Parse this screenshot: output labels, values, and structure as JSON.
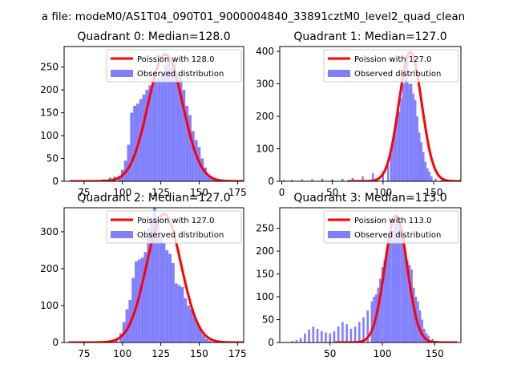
{
  "figure": {
    "suptitle": "a file: modeM0/AS1T04_090T01_9000004840_33891cztM0_level2_quad_clean"
  },
  "colors": {
    "poisson": "#ff0000",
    "observed": "#8080ff",
    "axis": "#000000"
  },
  "legend": {
    "observed_label": "Observed distribution"
  },
  "chart_data": [
    {
      "type": "histogram",
      "title": "Quadrant 0: Median=128.0",
      "xlim": [
        62,
        179
      ],
      "ylim": [
        0,
        295
      ],
      "xticks": [
        75,
        100,
        125,
        150,
        175
      ],
      "yticks": [
        0,
        50,
        100,
        150,
        200,
        250
      ],
      "poisson_mean": 128.0,
      "poisson_peak": 278,
      "poisson_label": "Poission with 128.0",
      "bins": [
        [
          88,
          4
        ],
        [
          92,
          8
        ],
        [
          95,
          10
        ],
        [
          98,
          12
        ],
        [
          100,
          25
        ],
        [
          102,
          45
        ],
        [
          104,
          80
        ],
        [
          106,
          150
        ],
        [
          108,
          165
        ],
        [
          110,
          170
        ],
        [
          112,
          180
        ],
        [
          114,
          190
        ],
        [
          116,
          200
        ],
        [
          118,
          210
        ],
        [
          120,
          215
        ],
        [
          122,
          225
        ],
        [
          124,
          228
        ],
        [
          126,
          238
        ],
        [
          128,
          255
        ],
        [
          130,
          262
        ],
        [
          132,
          248
        ],
        [
          134,
          265
        ],
        [
          136,
          240
        ],
        [
          138,
          230
        ],
        [
          140,
          200
        ],
        [
          142,
          165
        ],
        [
          144,
          145
        ],
        [
          146,
          110
        ],
        [
          148,
          90
        ],
        [
          150,
          75
        ],
        [
          152,
          50
        ],
        [
          154,
          30
        ],
        [
          156,
          12
        ],
        [
          158,
          8
        ],
        [
          160,
          4
        ]
      ]
    },
    {
      "type": "histogram",
      "title": "Quadrant 1: Median=127.0",
      "xlim": [
        -2,
        177
      ],
      "ylim": [
        0,
        415
      ],
      "xticks": [
        0,
        50,
        100,
        150
      ],
      "yticks": [
        0,
        100,
        200,
        300,
        400
      ],
      "poisson_mean": 127.0,
      "poisson_peak": 398,
      "poisson_label": "Poission with 127.0",
      "bins": [
        [
          2,
          4
        ],
        [
          10,
          5
        ],
        [
          20,
          6
        ],
        [
          30,
          6
        ],
        [
          40,
          8
        ],
        [
          50,
          6
        ],
        [
          60,
          8
        ],
        [
          70,
          10
        ],
        [
          80,
          15
        ],
        [
          90,
          25
        ],
        [
          100,
          30
        ],
        [
          105,
          50
        ],
        [
          108,
          85
        ],
        [
          110,
          115
        ],
        [
          112,
          160
        ],
        [
          114,
          205
        ],
        [
          116,
          215
        ],
        [
          118,
          255
        ],
        [
          120,
          300
        ],
        [
          122,
          350
        ],
        [
          124,
          370
        ],
        [
          126,
          300
        ],
        [
          128,
          300
        ],
        [
          130,
          270
        ],
        [
          132,
          250
        ],
        [
          134,
          200
        ],
        [
          136,
          150
        ],
        [
          138,
          120
        ],
        [
          140,
          90
        ],
        [
          142,
          60
        ],
        [
          144,
          40
        ],
        [
          146,
          30
        ],
        [
          148,
          15
        ],
        [
          152,
          8
        ],
        [
          158,
          5
        ],
        [
          162,
          5
        ]
      ]
    },
    {
      "type": "histogram",
      "title": "Quadrant 2: Median=127.0",
      "xlim": [
        62,
        179
      ],
      "ylim": [
        0,
        365
      ],
      "xticks": [
        75,
        100,
        125,
        150,
        175
      ],
      "yticks": [
        0,
        100,
        200,
        300
      ],
      "poisson_mean": 127.0,
      "poisson_peak": 348,
      "poisson_label": "Poission with 127.0",
      "bins": [
        [
          96,
          10
        ],
        [
          99,
          25
        ],
        [
          101,
          55
        ],
        [
          103,
          90
        ],
        [
          105,
          115
        ],
        [
          107,
          175
        ],
        [
          109,
          220
        ],
        [
          111,
          225
        ],
        [
          113,
          230
        ],
        [
          115,
          245
        ],
        [
          117,
          310
        ],
        [
          119,
          330
        ],
        [
          121,
          365
        ],
        [
          123,
          340
        ],
        [
          125,
          290
        ],
        [
          127,
          270
        ],
        [
          129,
          250
        ],
        [
          131,
          240
        ],
        [
          133,
          215
        ],
        [
          135,
          160
        ],
        [
          137,
          155
        ],
        [
          139,
          150
        ],
        [
          141,
          120
        ],
        [
          143,
          100
        ],
        [
          145,
          90
        ],
        [
          147,
          70
        ],
        [
          149,
          50
        ],
        [
          151,
          35
        ],
        [
          153,
          20
        ],
        [
          155,
          10
        ],
        [
          157,
          5
        ]
      ]
    },
    {
      "type": "histogram",
      "title": "Quadrant 3: Median=113.0",
      "xlim": [
        2,
        175
      ],
      "ylim": [
        0,
        295
      ],
      "xticks": [
        50,
        100,
        150
      ],
      "yticks": [
        0,
        50,
        100,
        150,
        200,
        250
      ],
      "poisson_mean": 113.0,
      "poisson_peak": 278,
      "poisson_label": "Poission with 113.0",
      "bins": [
        [
          14,
          3
        ],
        [
          18,
          5
        ],
        [
          22,
          10
        ],
        [
          26,
          20
        ],
        [
          30,
          28
        ],
        [
          34,
          35
        ],
        [
          38,
          30
        ],
        [
          42,
          25
        ],
        [
          46,
          22
        ],
        [
          50,
          20
        ],
        [
          54,
          25
        ],
        [
          58,
          35
        ],
        [
          62,
          45
        ],
        [
          66,
          40
        ],
        [
          70,
          30
        ],
        [
          74,
          35
        ],
        [
          78,
          45
        ],
        [
          82,
          55
        ],
        [
          86,
          70
        ],
        [
          90,
          90
        ],
        [
          92,
          100
        ],
        [
          94,
          105
        ],
        [
          96,
          120
        ],
        [
          98,
          140
        ],
        [
          100,
          165
        ],
        [
          102,
          180
        ],
        [
          104,
          200
        ],
        [
          106,
          220
        ],
        [
          108,
          235
        ],
        [
          110,
          245
        ],
        [
          112,
          260
        ],
        [
          114,
          270
        ],
        [
          116,
          265
        ],
        [
          118,
          250
        ],
        [
          120,
          220
        ],
        [
          122,
          200
        ],
        [
          124,
          180
        ],
        [
          126,
          170
        ],
        [
          128,
          160
        ],
        [
          130,
          120
        ],
        [
          132,
          100
        ],
        [
          134,
          90
        ],
        [
          136,
          70
        ],
        [
          138,
          50
        ],
        [
          140,
          30
        ],
        [
          142,
          20
        ],
        [
          144,
          15
        ],
        [
          148,
          8
        ],
        [
          152,
          3
        ]
      ]
    }
  ]
}
